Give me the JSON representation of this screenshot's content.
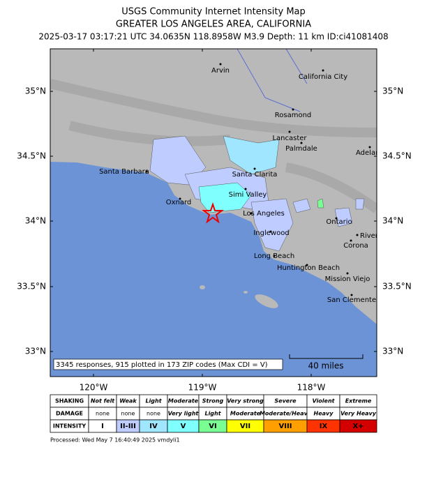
{
  "header": {
    "title": "USGS Community Internet Intensity Map",
    "region": "GREATER LOS ANGELES AREA, CALIFORNIA",
    "event": "2025-03-17 03:17:21 UTC 34.0635N 118.8958W M3.9 Depth: 11 km ID:ci41081408"
  },
  "map": {
    "lat_labels": [
      "35°N",
      "34.5°N",
      "34°N",
      "33.5°N",
      "33°N"
    ],
    "lon_labels": [
      "120°W",
      "119°W",
      "118°W"
    ],
    "cities": [
      "Arvin",
      "California City",
      "Rosamond",
      "Lancaster",
      "Palmdale",
      "Adelar",
      "Santa Barbara",
      "Santa Clarita",
      "Simi Valley",
      "Oxnard",
      "Los Angeles",
      "Ontario",
      "Inglewood",
      "River",
      "Corona",
      "Long Beach",
      "Huntington Beach",
      "Mission Viejo",
      "San Clemente"
    ],
    "responses": "3345 responses, 915 plotted in 173 ZIP codes (Max CDI = V)",
    "scale": "40 miles"
  },
  "legend": {
    "rows": [
      {
        "label": "SHAKING",
        "cells": [
          "Not felt",
          "Weak",
          "Light",
          "Moderate",
          "Strong",
          "Very strong",
          "Severe",
          "Violent",
          "Extreme"
        ]
      },
      {
        "label": "DAMAGE",
        "cells": [
          "none",
          "none",
          "none",
          "Very light",
          "Light",
          "Moderate",
          "Moderate/Heavy",
          "Heavy",
          "Very Heavy"
        ]
      },
      {
        "label": "INTENSITY",
        "cells": [
          "I",
          "II-III",
          "IV",
          "V",
          "VI",
          "VII",
          "VIII",
          "IX",
          "X+"
        ]
      }
    ]
  },
  "footer": {
    "processed": "Processed: Wed May  7 16:40:49 2025 vmdyli1"
  }
}
